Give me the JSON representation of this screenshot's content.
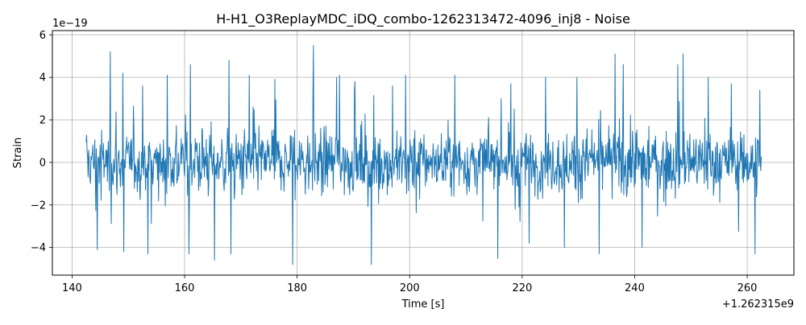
{
  "chart_data": {
    "type": "line",
    "title": "H-H1_O3ReplayMDC_iDQ_combo-1262313472-4096_inj8 - Noise",
    "xlabel": "Time [s]",
    "ylabel": "Strain",
    "y_scale_label": "1e−19",
    "x_offset_label": "+1.262315e9",
    "xlim": [
      136.5,
      268.3
    ],
    "ylim": [
      -5.3,
      6.2
    ],
    "x_ticks": [
      140,
      160,
      180,
      200,
      220,
      240,
      260
    ],
    "x_tick_labels": [
      "140",
      "160",
      "180",
      "200",
      "220",
      "240",
      "260"
    ],
    "y_ticks": [
      -4,
      -2,
      0,
      2,
      4,
      6
    ],
    "y_tick_labels": [
      "−4",
      "−2",
      "0",
      "2",
      "4",
      "6"
    ],
    "grid": true,
    "series": [
      {
        "color": "#1f77b4",
        "x_range": [
          142.5,
          262.5
        ],
        "typical_band": [
          -1.5,
          1.5
        ],
        "spikes": [
          {
            "x": 144.5,
            "y": -4.1
          },
          {
            "x": 146.8,
            "y": 5.2
          },
          {
            "x": 149.0,
            "y": 4.2
          },
          {
            "x": 149.2,
            "y": -4.2
          },
          {
            "x": 152.5,
            "y": 3.6
          },
          {
            "x": 153.5,
            "y": -4.3
          },
          {
            "x": 156.9,
            "y": 4.1
          },
          {
            "x": 160.8,
            "y": -4.3
          },
          {
            "x": 161.0,
            "y": 4.6
          },
          {
            "x": 165.3,
            "y": -4.6
          },
          {
            "x": 167.9,
            "y": 4.8
          },
          {
            "x": 168.2,
            "y": -4.3
          },
          {
            "x": 171.5,
            "y": 4.1
          },
          {
            "x": 176.0,
            "y": 3.9
          },
          {
            "x": 179.2,
            "y": -4.8
          },
          {
            "x": 182.9,
            "y": 5.5
          },
          {
            "x": 187.0,
            "y": 4.0
          },
          {
            "x": 187.5,
            "y": 4.1
          },
          {
            "x": 190.3,
            "y": 3.8
          },
          {
            "x": 193.2,
            "y": -4.8
          },
          {
            "x": 197.0,
            "y": 3.6
          },
          {
            "x": 199.3,
            "y": 4.1
          },
          {
            "x": 208.0,
            "y": 4.1
          },
          {
            "x": 218.0,
            "y": 3.7
          },
          {
            "x": 221.2,
            "y": -3.8
          },
          {
            "x": 224.2,
            "y": 4.0
          },
          {
            "x": 227.5,
            "y": -4.0
          },
          {
            "x": 229.7,
            "y": 4.0
          },
          {
            "x": 233.7,
            "y": -4.3
          },
          {
            "x": 236.5,
            "y": 5.1
          },
          {
            "x": 238.0,
            "y": 4.6
          },
          {
            "x": 241.3,
            "y": -4.0
          },
          {
            "x": 247.7,
            "y": 4.6
          },
          {
            "x": 248.6,
            "y": 5.1
          },
          {
            "x": 253.1,
            "y": 4.0
          },
          {
            "x": 257.2,
            "y": 3.7
          },
          {
            "x": 261.4,
            "y": -4.3
          },
          {
            "x": 262.2,
            "y": 3.4
          }
        ]
      }
    ]
  }
}
